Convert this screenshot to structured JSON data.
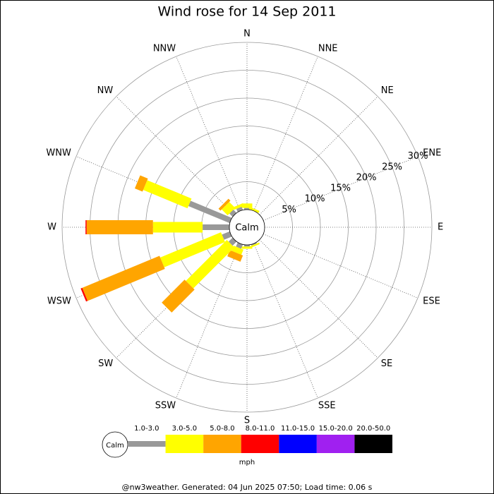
{
  "chart_data": {
    "type": "windrose",
    "title": "Wind rose for 14 Sep 2011",
    "categories": [
      "N",
      "NNE",
      "NE",
      "ENE",
      "E",
      "ESE",
      "SE",
      "SSE",
      "S",
      "SSW",
      "SW",
      "WSW",
      "W",
      "WNW",
      "NW",
      "NNW"
    ],
    "calm_label": "Calm",
    "units": "mph",
    "footer": "@nw3weather. Generated: 04 Jun 2025 07:50; Load time: 0.06 s",
    "rlim": [
      0,
      30
    ],
    "rticks": [
      {
        "value": 5,
        "label": "5%"
      },
      {
        "value": 10,
        "label": "10%"
      },
      {
        "value": 15,
        "label": "15%"
      },
      {
        "value": 20,
        "label": "20%"
      },
      {
        "value": 25,
        "label": "25%"
      },
      {
        "value": 30,
        "label": "30%"
      }
    ],
    "grid": true,
    "series": [
      {
        "name": "1.0-3.0",
        "color": "#999999",
        "values": [
          0.3,
          0,
          0,
          0,
          0,
          0,
          0,
          0.2,
          0.3,
          0.8,
          1.0,
          1.5,
          4.8,
          8.0,
          0.8,
          0.6
        ]
      },
      {
        "name": "3.0-5.0",
        "color": "#ffff00",
        "values": [
          0.8,
          0.4,
          0,
          0,
          0,
          0,
          0,
          0.3,
          0.4,
          1.0,
          10.4,
          11.8,
          8.9,
          8.6,
          1.5,
          0.5
        ]
      },
      {
        "name": "5.0-8.0",
        "color": "#ffa500",
        "values": [
          0,
          0,
          0,
          0,
          0,
          0,
          0,
          0,
          0,
          1.2,
          5.8,
          15.0,
          11.9,
          1.5,
          0.5,
          0
        ]
      },
      {
        "name": "8.0-11.0",
        "color": "#ff0000",
        "values": [
          0,
          0,
          0,
          0,
          0,
          0,
          0,
          0,
          0,
          0,
          0,
          0.3,
          0.2,
          0,
          0,
          0
        ]
      },
      {
        "name": "11.0-15.0",
        "color": "#0000ff",
        "values": [
          0,
          0,
          0,
          0,
          0,
          0,
          0,
          0,
          0,
          0,
          0,
          0,
          0,
          0,
          0,
          0
        ]
      },
      {
        "name": "15.0-20.0",
        "color": "#a020f0",
        "values": [
          0,
          0,
          0,
          0,
          0,
          0,
          0,
          0,
          0,
          0,
          0,
          0,
          0,
          0,
          0,
          0
        ]
      },
      {
        "name": "20.0-50.0",
        "color": "#000000",
        "values": [
          0,
          0,
          0,
          0,
          0,
          0,
          0,
          0,
          0,
          0,
          0,
          0,
          0,
          0,
          0,
          0
        ]
      }
    ]
  }
}
